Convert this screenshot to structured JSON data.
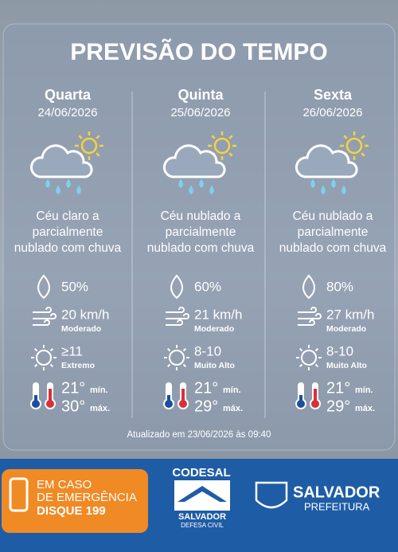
{
  "header": {
    "title": "PREVISÃO DO TEMPO"
  },
  "days": [
    {
      "day": "Quarta",
      "date": "24/06/2026",
      "description": [
        "Céu claro a",
        "parcialmente",
        "nublado com chuva"
      ],
      "humidity": "50%",
      "wind": "20 km/h",
      "wind_level": "Moderado",
      "uv": "≥11",
      "uv_level": "Extremo",
      "min": "21°",
      "min_label": "mín.",
      "max": "30°",
      "max_label": "máx."
    },
    {
      "day": "Quinta",
      "date": "25/06/2026",
      "description": [
        "Céu nublado a",
        "parcialmente",
        "nublado com chuva"
      ],
      "humidity": "60%",
      "wind": "21 km/h",
      "wind_level": "Moderado",
      "uv": "8-10",
      "uv_level": "Muito Alto",
      "min": "21°",
      "min_label": "mín.",
      "max": "29°",
      "max_label": "máx."
    },
    {
      "day": "Sexta",
      "date": "26/06/2026",
      "description": [
        "Céu nublado a",
        "parcialmente",
        "nublado com chuva"
      ],
      "humidity": "80%",
      "wind": "27 km/h",
      "wind_level": "Moderado",
      "uv": "8-10",
      "uv_level": "Muito Alto",
      "min": "21°",
      "min_label": "mín.",
      "max": "29°",
      "max_label": "máx."
    }
  ],
  "updated": "Atualizado em 23/06/2026 às 09:40",
  "footer": {
    "emergency": [
      "EM CASO",
      "DE EMERGÊNCIA",
      "DISQUE 199"
    ],
    "codesal": {
      "name": "CODESAL",
      "city": "SALVADOR",
      "subtitle": "DEFESA CIVIL"
    },
    "prefeitura": {
      "name": "SALVADOR",
      "subtitle": "PREFEITURA"
    }
  }
}
